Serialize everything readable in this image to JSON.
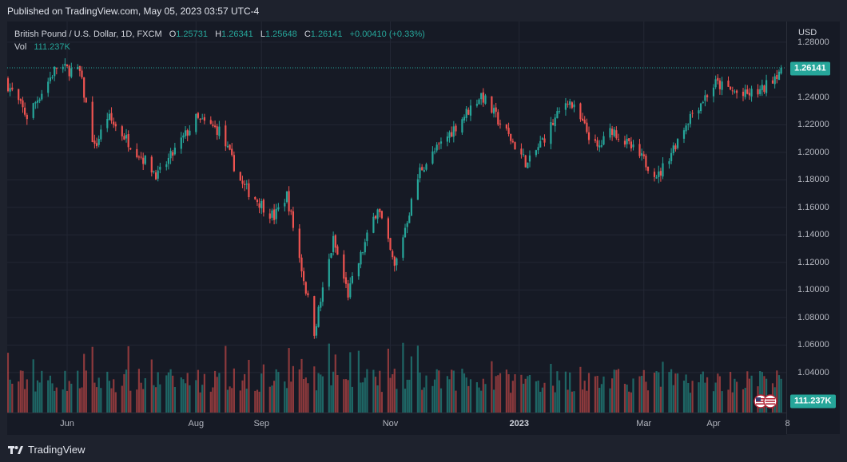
{
  "header": {
    "published": "Published on TradingView.com, May 05, 2023 03:57 UTC-4"
  },
  "legend": {
    "symbol": "British Pound / U.S. Dollar, 1D, FXCM",
    "o_key": "O",
    "o_val": "1.25731",
    "h_key": "H",
    "h_val": "1.26341",
    "l_key": "L",
    "l_val": "1.25648",
    "c_key": "C",
    "c_val": "1.26141",
    "change": "+0.00410 (+0.33%)",
    "vol_label": "Vol",
    "vol_val": "111.237K"
  },
  "price_axis": {
    "currency": "USD",
    "ticks": [
      "1.28000",
      "1.24000",
      "1.22000",
      "1.20000",
      "1.18000",
      "1.16000",
      "1.14000",
      "1.12000",
      "1.10000",
      "1.08000",
      "1.06000",
      "1.04000"
    ],
    "last_price": "1.26141",
    "last_volume": "111.237K"
  },
  "time_axis": {
    "ticks": [
      "Jun",
      "Aug",
      "Sep",
      "Nov",
      "2023",
      "Mar",
      "Apr",
      "8"
    ]
  },
  "footer": {
    "brand": "TradingView"
  },
  "colors": {
    "up": "#26a69a",
    "down": "#ef5350",
    "background": "#161a25",
    "grid": "#232734"
  },
  "chart_data": {
    "type": "candlestick",
    "symbol": "GBPUSD",
    "interval": "1D",
    "ylim": [
      1.03,
      1.28
    ],
    "price_anchors": [
      {
        "date": "2022-05-04",
        "close": 1.249
      },
      {
        "date": "2022-05-13",
        "close": 1.226
      },
      {
        "date": "2022-05-27",
        "close": 1.262
      },
      {
        "date": "2022-06-07",
        "close": 1.258
      },
      {
        "date": "2022-06-14",
        "close": 1.203
      },
      {
        "date": "2022-06-20",
        "close": 1.226
      },
      {
        "date": "2022-07-14",
        "close": 1.183
      },
      {
        "date": "2022-08-01",
        "close": 1.224
      },
      {
        "date": "2022-08-12",
        "close": 1.216
      },
      {
        "date": "2022-08-23",
        "close": 1.176
      },
      {
        "date": "2022-09-07",
        "close": 1.153
      },
      {
        "date": "2022-09-13",
        "close": 1.169
      },
      {
        "date": "2022-09-26",
        "close": 1.07
      },
      {
        "date": "2022-10-05",
        "close": 1.136
      },
      {
        "date": "2022-10-12",
        "close": 1.097
      },
      {
        "date": "2022-10-26",
        "close": 1.161
      },
      {
        "date": "2022-11-03",
        "close": 1.116
      },
      {
        "date": "2022-11-15",
        "close": 1.187
      },
      {
        "date": "2022-12-14",
        "close": 1.242
      },
      {
        "date": "2023-01-05",
        "close": 1.191
      },
      {
        "date": "2023-01-24",
        "close": 1.239
      },
      {
        "date": "2023-02-07",
        "close": 1.202
      },
      {
        "date": "2023-02-14",
        "close": 1.217
      },
      {
        "date": "2023-03-08",
        "close": 1.183
      },
      {
        "date": "2023-03-23",
        "close": 1.227
      },
      {
        "date": "2023-04-04",
        "close": 1.25
      },
      {
        "date": "2023-04-17",
        "close": 1.241
      },
      {
        "date": "2023-04-26",
        "close": 1.245
      },
      {
        "date": "2023-05-05",
        "close": 1.26141
      }
    ],
    "last_bar": {
      "open": 1.25731,
      "high": 1.26341,
      "low": 1.25648,
      "close": 1.26141,
      "volume": "111.237K"
    }
  }
}
